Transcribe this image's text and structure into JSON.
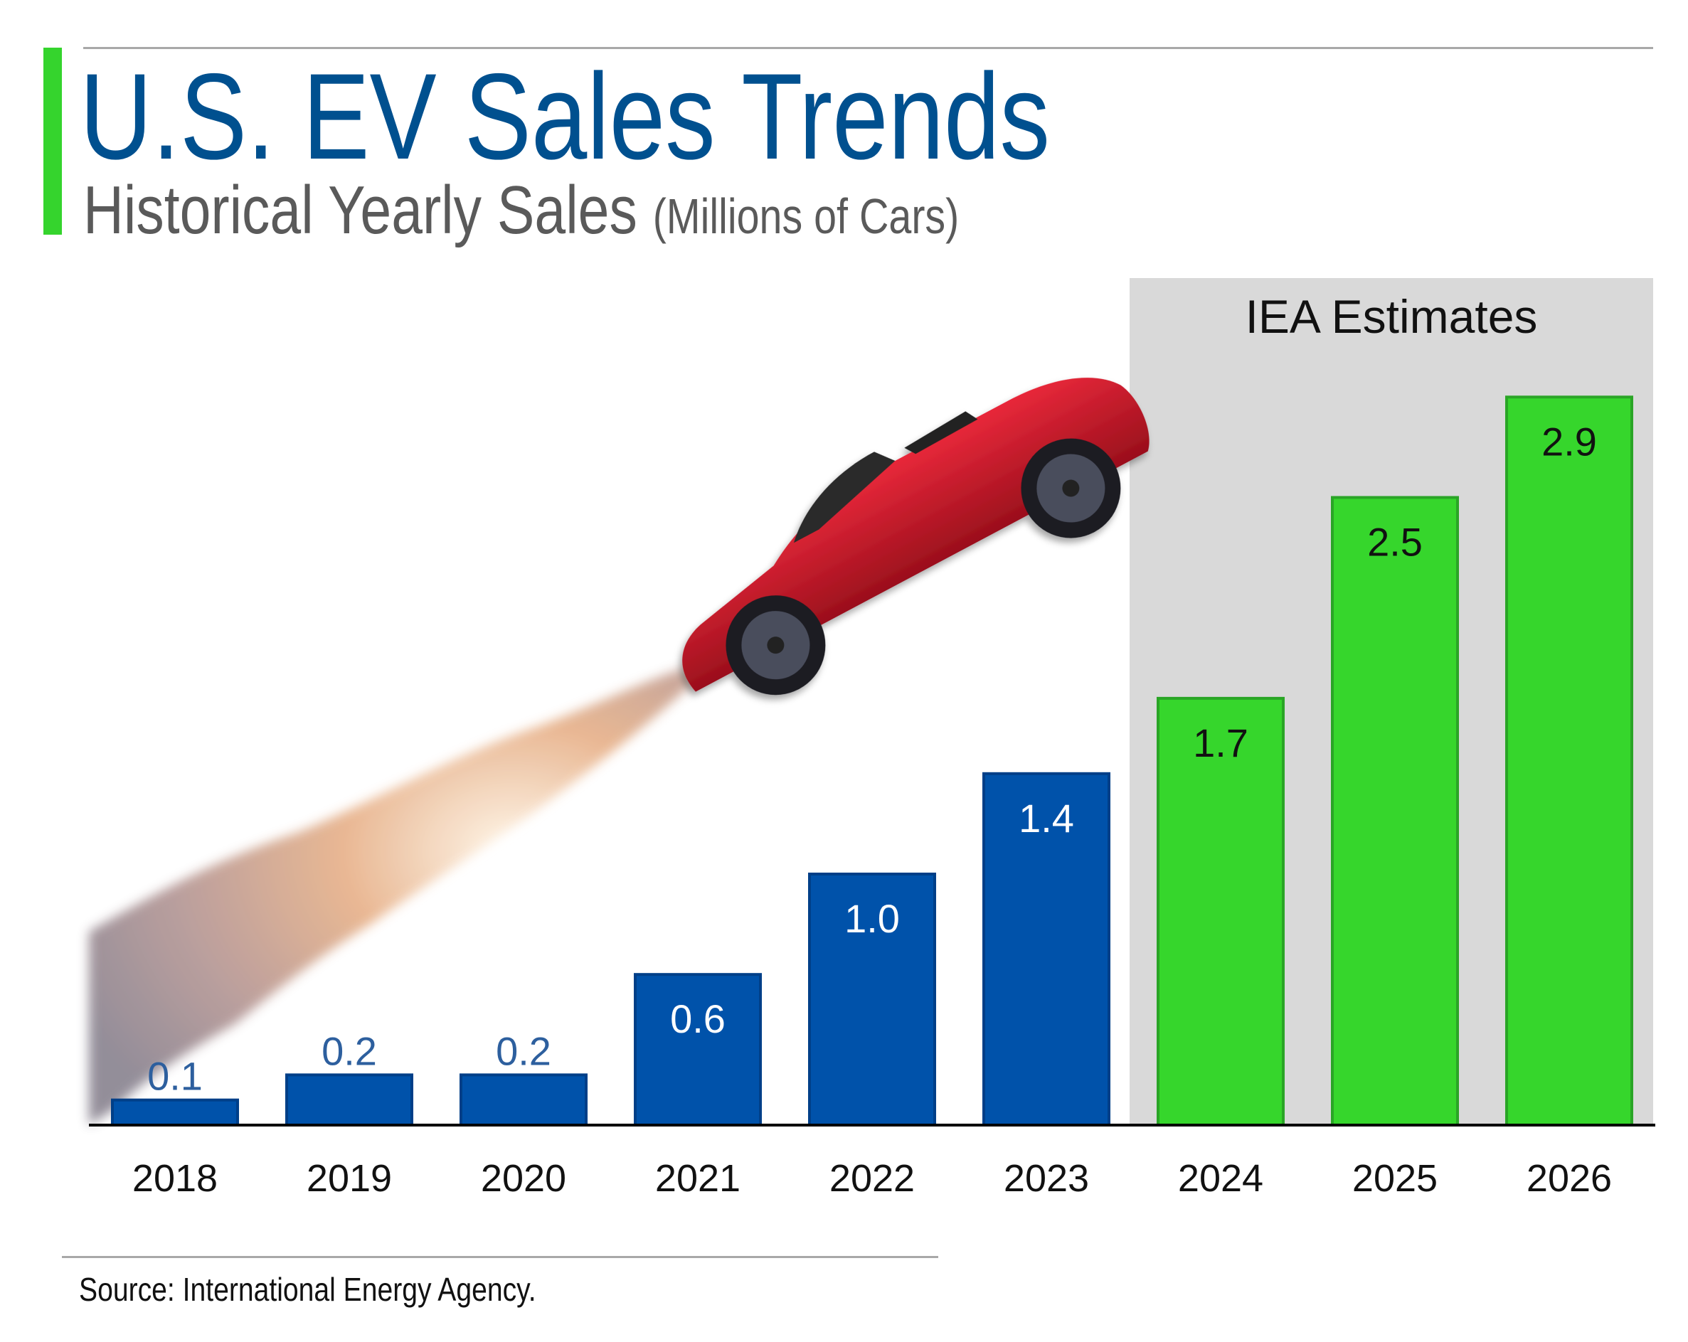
{
  "header": {
    "title": "U.S. EV Sales Trends",
    "subtitle": "Historical Yearly Sales",
    "subtitle_unit": "(Millions of Cars)"
  },
  "footer": {
    "source": "Source: International Energy Agency."
  },
  "chart_data": {
    "type": "bar",
    "title": "U.S. EV Sales Trends",
    "ylabel": "Millions of Cars",
    "xlabel": "",
    "categories": [
      "2018",
      "2019",
      "2020",
      "2021",
      "2022",
      "2023",
      "2024",
      "2025",
      "2026"
    ],
    "values": [
      0.1,
      0.2,
      0.2,
      0.6,
      1.0,
      1.4,
      1.7,
      2.5,
      2.9
    ],
    "value_labels": [
      "0.1",
      "0.2",
      "0.2",
      "0.6",
      "1.0",
      "1.4",
      "1.7",
      "2.5",
      "2.9"
    ],
    "estimate": [
      false,
      false,
      false,
      false,
      false,
      false,
      true,
      true,
      true
    ],
    "estimate_region_label": "IEA Estimates",
    "ylim": [
      0,
      3.35
    ],
    "grid": false,
    "colors": {
      "historical": "#0052aa",
      "historical_border": "#003f88",
      "estimate": "#36d62c",
      "estimate_border": "#2aa526",
      "estimate_band": "#d9d9d9",
      "outside_label": "#2d5f9e"
    }
  }
}
